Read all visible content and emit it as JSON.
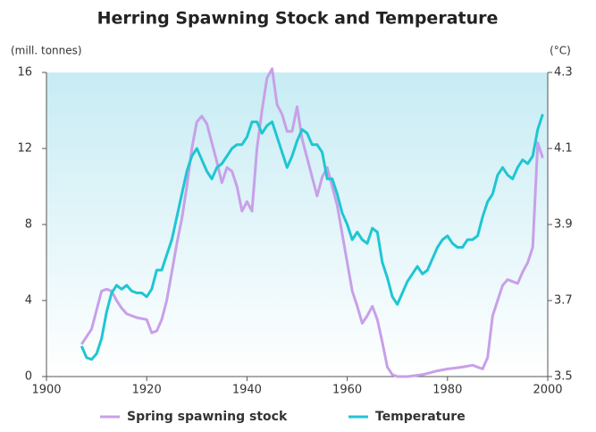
{
  "chart_data": {
    "type": "line",
    "title": "Herring Spawning Stock and Temperature",
    "y_label": "(mill. tonnes)",
    "y2_label": "(°C)",
    "xlim": [
      1900,
      2000
    ],
    "xticks": [
      1900,
      1920,
      1940,
      1960,
      1980,
      2000
    ],
    "ylim": [
      0,
      16
    ],
    "yticks": [
      0,
      4,
      8,
      12,
      16
    ],
    "y2lim": [
      3.5,
      4.3
    ],
    "y2ticks": [
      3.5,
      3.7,
      3.9,
      4.1,
      4.3
    ],
    "series": [
      {
        "name": "Spring spawning stock",
        "color": "#c8a0e8",
        "x": [
          1907,
          1909,
          1910,
          1911,
          1912,
          1913,
          1914,
          1915,
          1916,
          1918,
          1920,
          1921,
          1922,
          1923,
          1924,
          1925,
          1926,
          1927,
          1928,
          1929,
          1930,
          1931,
          1932,
          1933,
          1934,
          1935,
          1936,
          1937,
          1938,
          1939,
          1940,
          1941,
          1942,
          1943,
          1944,
          1945,
          1946,
          1947,
          1948,
          1949,
          1950,
          1951,
          1952,
          1953,
          1954,
          1955,
          1956,
          1957,
          1958,
          1959,
          1960,
          1961,
          1962,
          1963,
          1964,
          1965,
          1966,
          1967,
          1968,
          1969,
          1970,
          1972,
          1975,
          1978,
          1980,
          1983,
          1985,
          1987,
          1988,
          1989,
          1990,
          1991,
          1992,
          1993,
          1994,
          1995,
          1996,
          1997,
          1998,
          1999
        ],
        "values": [
          1.7,
          2.5,
          3.5,
          4.5,
          4.6,
          4.5,
          4.0,
          3.6,
          3.3,
          3.1,
          3.0,
          2.3,
          2.4,
          3.0,
          4.0,
          5.5,
          7.0,
          8.3,
          10.0,
          12.0,
          13.4,
          13.7,
          13.3,
          12.3,
          11.3,
          10.2,
          11.0,
          10.8,
          10.0,
          8.7,
          9.2,
          8.7,
          12.0,
          14.0,
          15.7,
          16.2,
          14.3,
          13.8,
          12.9,
          12.9,
          14.2,
          12.5,
          11.5,
          10.5,
          9.5,
          10.5,
          11.0,
          10.0,
          9.0,
          7.5,
          6.0,
          4.5,
          3.7,
          2.8,
          3.2,
          3.7,
          3.0,
          1.8,
          0.5,
          0.1,
          0.0,
          0.0,
          0.1,
          0.3,
          0.4,
          0.5,
          0.6,
          0.4,
          1.0,
          3.2,
          4.0,
          4.8,
          5.1,
          5.0,
          4.9,
          5.5,
          6.0,
          6.8,
          12.3,
          11.5
        ]
      },
      {
        "name": "Temperature",
        "color": "#1fc6d2",
        "axis": "y2",
        "x": [
          1907,
          1908,
          1909,
          1910,
          1911,
          1912,
          1913,
          1914,
          1915,
          1916,
          1917,
          1918,
          1919,
          1920,
          1921,
          1922,
          1923,
          1924,
          1925,
          1926,
          1927,
          1928,
          1929,
          1930,
          1931,
          1932,
          1933,
          1934,
          1935,
          1936,
          1937,
          1938,
          1939,
          1940,
          1941,
          1942,
          1943,
          1944,
          1945,
          1946,
          1947,
          1948,
          1949,
          1950,
          1951,
          1952,
          1953,
          1954,
          1955,
          1956,
          1957,
          1958,
          1959,
          1960,
          1961,
          1962,
          1963,
          1964,
          1965,
          1966,
          1967,
          1968,
          1969,
          1970,
          1971,
          1972,
          1973,
          1974,
          1975,
          1976,
          1977,
          1978,
          1979,
          1980,
          1981,
          1982,
          1983,
          1984,
          1985,
          1986,
          1987,
          1988,
          1989,
          1990,
          1991,
          1992,
          1993,
          1994,
          1995,
          1996,
          1997,
          1998,
          1999
        ],
        "values": [
          3.58,
          3.55,
          3.545,
          3.56,
          3.6,
          3.67,
          3.72,
          3.74,
          3.73,
          3.74,
          3.725,
          3.72,
          3.72,
          3.71,
          3.73,
          3.78,
          3.78,
          3.82,
          3.86,
          3.92,
          3.98,
          4.04,
          4.08,
          4.1,
          4.07,
          4.04,
          4.02,
          4.05,
          4.06,
          4.08,
          4.1,
          4.11,
          4.11,
          4.13,
          4.17,
          4.17,
          4.14,
          4.16,
          4.17,
          4.13,
          4.09,
          4.05,
          4.08,
          4.12,
          4.15,
          4.14,
          4.11,
          4.11,
          4.09,
          4.02,
          4.02,
          3.98,
          3.93,
          3.9,
          3.86,
          3.88,
          3.86,
          3.85,
          3.89,
          3.88,
          3.8,
          3.76,
          3.71,
          3.69,
          3.72,
          3.75,
          3.77,
          3.79,
          3.77,
          3.78,
          3.81,
          3.84,
          3.86,
          3.87,
          3.85,
          3.84,
          3.84,
          3.86,
          3.86,
          3.87,
          3.92,
          3.96,
          3.98,
          4.03,
          4.05,
          4.03,
          4.02,
          4.05,
          4.07,
          4.06,
          4.08,
          4.15,
          4.19
        ]
      }
    ]
  }
}
